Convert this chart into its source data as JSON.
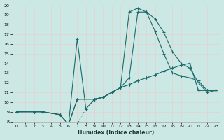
{
  "xlabel": "Humidex (Indice chaleur)",
  "ylabel": "",
  "bg_color": "#cbe8e4",
  "line_color": "#1a6b6b",
  "grid_color": "#e8d0d0",
  "xlim": [
    -0.5,
    23.5
  ],
  "ylim": [
    8,
    20
  ],
  "xticks": [
    0,
    1,
    2,
    3,
    4,
    5,
    6,
    7,
    8,
    9,
    10,
    11,
    12,
    13,
    14,
    15,
    16,
    17,
    18,
    19,
    20,
    21,
    22,
    23
  ],
  "yticks": [
    8,
    9,
    10,
    11,
    12,
    13,
    14,
    15,
    16,
    17,
    18,
    19,
    20
  ],
  "series": [
    {
      "x": [
        0,
        2,
        3,
        5,
        6,
        7,
        9,
        10,
        11,
        12,
        13,
        14,
        15,
        16,
        17,
        18,
        19,
        20,
        21,
        22,
        23
      ],
      "y": [
        9,
        9,
        9,
        8.7,
        7.7,
        10.3,
        10.3,
        10.5,
        11.0,
        11.5,
        19.3,
        19.7,
        19.3,
        18.6,
        17.2,
        15.2,
        14.0,
        13.5,
        12.0,
        11.0,
        11.2
      ],
      "linestyle": "-"
    },
    {
      "x": [
        0,
        2,
        3,
        5,
        6,
        7,
        9,
        10,
        11,
        12,
        13,
        14,
        15,
        16,
        17,
        18,
        19,
        20,
        21,
        22,
        23
      ],
      "y": [
        9,
        9,
        9,
        8.7,
        7.7,
        10.3,
        10.3,
        10.5,
        11.0,
        11.5,
        12.5,
        19.3,
        19.3,
        17.3,
        15.0,
        13.0,
        12.7,
        12.5,
        12.2,
        11.2,
        11.2
      ],
      "linestyle": "-"
    },
    {
      "x": [
        0,
        2,
        3,
        5,
        6,
        7,
        8,
        9,
        10,
        11,
        12,
        13,
        14,
        15,
        16,
        17,
        18,
        19,
        20,
        21,
        22,
        23
      ],
      "y": [
        9,
        9,
        9,
        8.7,
        7.7,
        16.5,
        9.3,
        10.3,
        10.5,
        11.0,
        11.5,
        11.8,
        12.2,
        12.5,
        12.8,
        13.2,
        13.5,
        13.8,
        14.0,
        11.2,
        11.2,
        11.2
      ],
      "linestyle": "-"
    },
    {
      "x": [
        0,
        2,
        3,
        5,
        6,
        7,
        8,
        9,
        10,
        11,
        12,
        13,
        14,
        15,
        16,
        17,
        18,
        19,
        20,
        21,
        22,
        23
      ],
      "y": [
        9,
        9,
        9,
        8.7,
        7.7,
        7.7,
        9.3,
        10.3,
        10.5,
        11.0,
        11.5,
        11.8,
        12.2,
        12.5,
        12.8,
        13.2,
        13.5,
        13.8,
        14.0,
        11.2,
        11.2,
        11.2
      ],
      "linestyle": ":"
    }
  ]
}
